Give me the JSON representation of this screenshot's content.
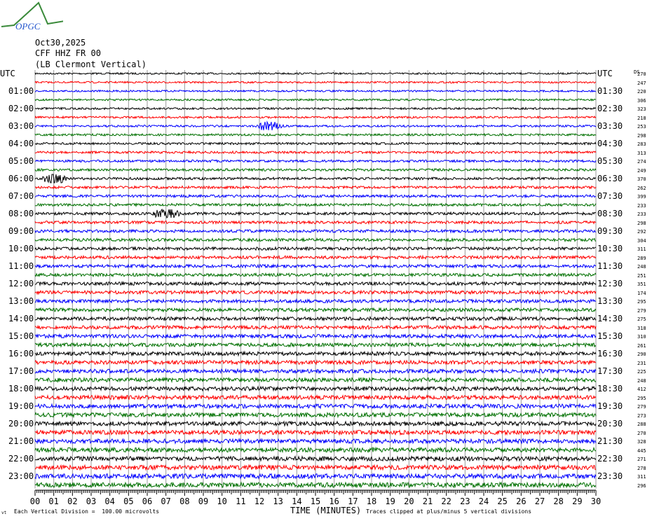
{
  "header": {
    "logo_text": "OPGC",
    "date": "Oct30,2025",
    "station": "CFF HHZ FR 00",
    "description": "(LB Clermont Vertical)",
    "ds_label": "DS"
  },
  "chart_data": {
    "type": "line",
    "subtype": "helicorder",
    "xlabel": "TIME (MINUTES)",
    "xlim": [
      0,
      30
    ],
    "x_ticks": [
      "00",
      "01",
      "02",
      "03",
      "04",
      "05",
      "06",
      "07",
      "08",
      "09",
      "10",
      "11",
      "12",
      "13",
      "14",
      "15",
      "16",
      "17",
      "18",
      "19",
      "20",
      "21",
      "22",
      "23",
      "24",
      "25",
      "26",
      "27",
      "28",
      "29",
      "30"
    ],
    "left_labels": [
      "UTC",
      "",
      "01:00",
      "",
      "02:00",
      "",
      "03:00",
      "",
      "04:00",
      "",
      "05:00",
      "",
      "06:00",
      "",
      "07:00",
      "",
      "08:00",
      "",
      "09:00",
      "",
      "10:00",
      "",
      "11:00",
      "",
      "12:00",
      "",
      "13:00",
      "",
      "14:00",
      "",
      "15:00",
      "",
      "16:00",
      "",
      "17:00",
      "",
      "18:00",
      "",
      "19:00",
      "",
      "20:00",
      "",
      "21:00",
      "",
      "22:00",
      "",
      "23:00",
      ""
    ],
    "right_labels": [
      "UTC",
      "",
      "01:30",
      "",
      "02:30",
      "",
      "03:30",
      "",
      "04:30",
      "",
      "05:30",
      "",
      "06:30",
      "",
      "07:30",
      "",
      "08:30",
      "",
      "09:30",
      "",
      "10:30",
      "",
      "11:30",
      "",
      "12:30",
      "",
      "13:30",
      "",
      "14:30",
      "",
      "15:30",
      "",
      "16:30",
      "",
      "17:30",
      "",
      "18:30",
      "",
      "19:30",
      "",
      "20:30",
      "",
      "21:30",
      "",
      "22:30",
      "",
      "23:30",
      ""
    ],
    "ds_values": [
      270,
      247,
      220,
      306,
      323,
      218,
      253,
      298,
      283,
      313,
      274,
      249,
      370,
      262,
      399,
      233,
      233,
      298,
      292,
      304,
      311,
      289,
      248,
      251,
      351,
      174,
      295,
      279,
      275,
      318,
      310,
      261,
      290,
      231,
      225,
      248,
      412,
      295,
      279,
      273,
      288,
      270,
      328,
      445,
      271,
      278,
      311,
      296
    ],
    "trace_colors": [
      "#000000",
      "#ff0000",
      "#0000ff",
      "#007000"
    ],
    "scale_note": "Each Vertical Division =  100.00 microvolts",
    "clip_note": "Traces clipped at plus/minus 5 vertical divisions"
  }
}
